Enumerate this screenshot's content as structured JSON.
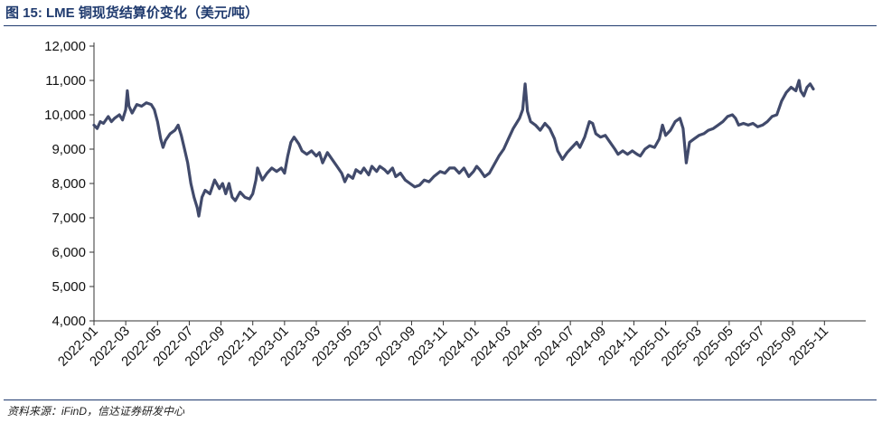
{
  "figure": {
    "title": "图 15:  LME 铜现货结算价变化（美元/吨）",
    "source": "资料来源：iFinD，信达证券研发中心"
  },
  "colors": {
    "line": "#414a6b",
    "axis": "#333333",
    "title": "#1f3a6e"
  },
  "chart_data": {
    "type": "line",
    "title": "LME 铜现货结算价变化（美元/吨）",
    "xlabel": "",
    "ylabel": "",
    "ylim": [
      4000,
      12000
    ],
    "yticks": [
      4000,
      5000,
      6000,
      7000,
      8000,
      9000,
      10000,
      11000,
      12000
    ],
    "ytick_labels": [
      "4,000",
      "5,000",
      "6,000",
      "7,000",
      "8,000",
      "9,000",
      "10,000",
      "11,000",
      "12,000"
    ],
    "xlim": [
      0,
      48.6
    ],
    "xticks": [
      0,
      2,
      4,
      6,
      8,
      10,
      12,
      14,
      16,
      18,
      20,
      22,
      24,
      26,
      28,
      30,
      32,
      34,
      36,
      38,
      40,
      42,
      44,
      46
    ],
    "xtick_labels": [
      "2022-01",
      "2022-03",
      "2022-05",
      "2022-07",
      "2022-09",
      "2022-11",
      "2023-01",
      "2023-03",
      "2023-05",
      "2023-07",
      "2023-09",
      "2023-11",
      "2024-01",
      "2024-03",
      "2024-05",
      "2024-07",
      "2024-09",
      "2024-11",
      "2025-01",
      "2025-03",
      "2025-05",
      "2025-07",
      "2025-09",
      "2025-11"
    ],
    "grid": false,
    "series": [
      {
        "name": "LME铜现货结算价",
        "x_unit": "months since 2022-01",
        "points": [
          [
            0.0,
            9700
          ],
          [
            0.2,
            9600
          ],
          [
            0.4,
            9800
          ],
          [
            0.6,
            9750
          ],
          [
            0.9,
            9950
          ],
          [
            1.1,
            9800
          ],
          [
            1.3,
            9900
          ],
          [
            1.6,
            10000
          ],
          [
            1.8,
            9850
          ],
          [
            2.0,
            10150
          ],
          [
            2.1,
            10700
          ],
          [
            2.2,
            10250
          ],
          [
            2.4,
            10050
          ],
          [
            2.7,
            10300
          ],
          [
            3.0,
            10250
          ],
          [
            3.3,
            10350
          ],
          [
            3.6,
            10300
          ],
          [
            3.8,
            10150
          ],
          [
            4.0,
            9800
          ],
          [
            4.2,
            9300
          ],
          [
            4.35,
            9050
          ],
          [
            4.5,
            9250
          ],
          [
            4.8,
            9450
          ],
          [
            5.1,
            9550
          ],
          [
            5.3,
            9700
          ],
          [
            5.5,
            9400
          ],
          [
            5.7,
            9000
          ],
          [
            5.9,
            8600
          ],
          [
            6.1,
            8000
          ],
          [
            6.3,
            7600
          ],
          [
            6.5,
            7300
          ],
          [
            6.6,
            7050
          ],
          [
            6.8,
            7600
          ],
          [
            7.0,
            7800
          ],
          [
            7.3,
            7700
          ],
          [
            7.6,
            8100
          ],
          [
            7.9,
            7850
          ],
          [
            8.1,
            8000
          ],
          [
            8.3,
            7700
          ],
          [
            8.5,
            8000
          ],
          [
            8.7,
            7600
          ],
          [
            8.9,
            7500
          ],
          [
            9.2,
            7750
          ],
          [
            9.5,
            7600
          ],
          [
            9.8,
            7550
          ],
          [
            10.0,
            7700
          ],
          [
            10.2,
            8100
          ],
          [
            10.3,
            8450
          ],
          [
            10.6,
            8100
          ],
          [
            10.9,
            8300
          ],
          [
            11.2,
            8450
          ],
          [
            11.5,
            8350
          ],
          [
            11.8,
            8450
          ],
          [
            12.0,
            8300
          ],
          [
            12.2,
            8800
          ],
          [
            12.4,
            9200
          ],
          [
            12.6,
            9350
          ],
          [
            12.9,
            9150
          ],
          [
            13.1,
            8950
          ],
          [
            13.4,
            8850
          ],
          [
            13.7,
            8950
          ],
          [
            14.0,
            8800
          ],
          [
            14.2,
            8900
          ],
          [
            14.4,
            8600
          ],
          [
            14.7,
            8900
          ],
          [
            15.0,
            8700
          ],
          [
            15.3,
            8500
          ],
          [
            15.6,
            8300
          ],
          [
            15.8,
            8050
          ],
          [
            16.0,
            8250
          ],
          [
            16.3,
            8150
          ],
          [
            16.5,
            8400
          ],
          [
            16.8,
            8300
          ],
          [
            17.0,
            8450
          ],
          [
            17.3,
            8250
          ],
          [
            17.5,
            8500
          ],
          [
            17.8,
            8350
          ],
          [
            18.0,
            8500
          ],
          [
            18.3,
            8400
          ],
          [
            18.5,
            8300
          ],
          [
            18.8,
            8450
          ],
          [
            19.0,
            8200
          ],
          [
            19.3,
            8300
          ],
          [
            19.6,
            8100
          ],
          [
            19.9,
            8000
          ],
          [
            20.2,
            7900
          ],
          [
            20.5,
            7950
          ],
          [
            20.8,
            8100
          ],
          [
            21.1,
            8050
          ],
          [
            21.4,
            8200
          ],
          [
            21.8,
            8350
          ],
          [
            22.1,
            8300
          ],
          [
            22.4,
            8450
          ],
          [
            22.7,
            8450
          ],
          [
            23.0,
            8300
          ],
          [
            23.3,
            8450
          ],
          [
            23.6,
            8200
          ],
          [
            23.9,
            8350
          ],
          [
            24.1,
            8500
          ],
          [
            24.3,
            8400
          ],
          [
            24.6,
            8200
          ],
          [
            24.9,
            8300
          ],
          [
            25.2,
            8550
          ],
          [
            25.5,
            8800
          ],
          [
            25.8,
            9000
          ],
          [
            26.1,
            9300
          ],
          [
            26.4,
            9600
          ],
          [
            26.6,
            9750
          ],
          [
            26.8,
            9900
          ],
          [
            27.0,
            10150
          ],
          [
            27.15,
            10900
          ],
          [
            27.3,
            10100
          ],
          [
            27.5,
            9800
          ],
          [
            27.8,
            9700
          ],
          [
            28.1,
            9550
          ],
          [
            28.4,
            9750
          ],
          [
            28.7,
            9600
          ],
          [
            29.0,
            9300
          ],
          [
            29.2,
            8950
          ],
          [
            29.5,
            8700
          ],
          [
            29.8,
            8900
          ],
          [
            30.1,
            9050
          ],
          [
            30.4,
            9200
          ],
          [
            30.6,
            9050
          ],
          [
            30.9,
            9350
          ],
          [
            31.2,
            9800
          ],
          [
            31.4,
            9750
          ],
          [
            31.6,
            9450
          ],
          [
            31.9,
            9350
          ],
          [
            32.2,
            9400
          ],
          [
            32.5,
            9200
          ],
          [
            32.8,
            9000
          ],
          [
            33.0,
            8850
          ],
          [
            33.3,
            8950
          ],
          [
            33.6,
            8850
          ],
          [
            33.9,
            8950
          ],
          [
            34.2,
            8850
          ],
          [
            34.4,
            8800
          ],
          [
            34.7,
            9000
          ],
          [
            35.0,
            9100
          ],
          [
            35.3,
            9050
          ],
          [
            35.6,
            9300
          ],
          [
            35.8,
            9700
          ],
          [
            36.0,
            9400
          ],
          [
            36.3,
            9550
          ],
          [
            36.6,
            9800
          ],
          [
            36.9,
            9900
          ],
          [
            37.1,
            9600
          ],
          [
            37.3,
            8600
          ],
          [
            37.5,
            9200
          ],
          [
            37.8,
            9300
          ],
          [
            38.1,
            9400
          ],
          [
            38.4,
            9450
          ],
          [
            38.7,
            9550
          ],
          [
            39.0,
            9600
          ],
          [
            39.3,
            9700
          ],
          [
            39.6,
            9800
          ],
          [
            39.9,
            9950
          ],
          [
            40.2,
            10000
          ],
          [
            40.4,
            9900
          ],
          [
            40.6,
            9700
          ],
          [
            40.9,
            9750
          ],
          [
            41.2,
            9700
          ],
          [
            41.5,
            9750
          ],
          [
            41.8,
            9650
          ],
          [
            42.1,
            9700
          ],
          [
            42.4,
            9800
          ],
          [
            42.7,
            9950
          ],
          [
            43.0,
            10000
          ],
          [
            43.3,
            10400
          ],
          [
            43.6,
            10650
          ],
          [
            43.9,
            10800
          ],
          [
            44.2,
            10700
          ],
          [
            44.4,
            11000
          ],
          [
            44.5,
            10700
          ],
          [
            44.7,
            10550
          ],
          [
            44.9,
            10800
          ],
          [
            45.1,
            10900
          ],
          [
            45.3,
            10750
          ]
        ]
      }
    ]
  }
}
